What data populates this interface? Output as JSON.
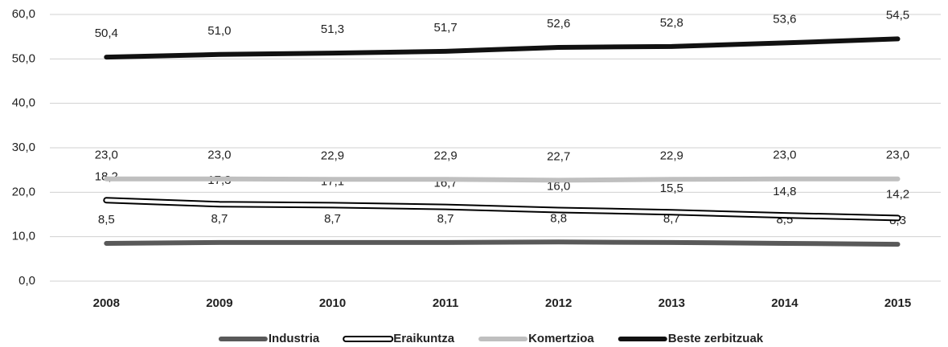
{
  "chart_data": {
    "type": "line",
    "categories": [
      "2008",
      "2009",
      "2010",
      "2011",
      "2012",
      "2013",
      "2014",
      "2015"
    ],
    "series": [
      {
        "name": "Industria",
        "color": "#595959",
        "values": [
          8.5,
          8.7,
          8.7,
          8.7,
          8.8,
          8.7,
          8.5,
          8.3
        ],
        "value_labels": [
          "8,5",
          "8,7",
          "8,7",
          "8,7",
          "8,8",
          "8,7",
          "8,5",
          "8,3"
        ]
      },
      {
        "name": "Eraikuntza",
        "color": "#ffffff",
        "outline": "#000000",
        "values": [
          18.2,
          17.3,
          17.1,
          16.7,
          16.0,
          15.5,
          14.8,
          14.2
        ],
        "value_labels": [
          "18,2",
          "17,3",
          "17,1",
          "16,7",
          "16,0",
          "15,5",
          "14,8",
          "14,2"
        ]
      },
      {
        "name": "Komertzioa",
        "color": "#bfbfbf",
        "values": [
          23.0,
          23.0,
          22.9,
          22.9,
          22.7,
          22.9,
          23.0,
          23.0
        ],
        "value_labels": [
          "23,0",
          "23,0",
          "22,9",
          "22,9",
          "22,7",
          "22,9",
          "23,0",
          "23,0"
        ]
      },
      {
        "name": "Beste zerbitzuak",
        "color": "#111111",
        "values": [
          50.4,
          51.0,
          51.3,
          51.7,
          52.6,
          52.8,
          53.6,
          54.5
        ],
        "value_labels": [
          "50,4",
          "51,0",
          "51,3",
          "51,7",
          "52,6",
          "52,8",
          "53,6",
          "54,5"
        ]
      }
    ],
    "ylim": [
      0,
      60
    ],
    "yticks": [
      {
        "value": 0,
        "label": "0,0"
      },
      {
        "value": 10,
        "label": "10,0"
      },
      {
        "value": 20,
        "label": "20,0"
      },
      {
        "value": 30,
        "label": "30,0"
      },
      {
        "value": 40,
        "label": "40,0"
      },
      {
        "value": 50,
        "label": "50,0"
      },
      {
        "value": 60,
        "label": "60,0"
      }
    ],
    "grid": true,
    "legend": "bottom"
  }
}
